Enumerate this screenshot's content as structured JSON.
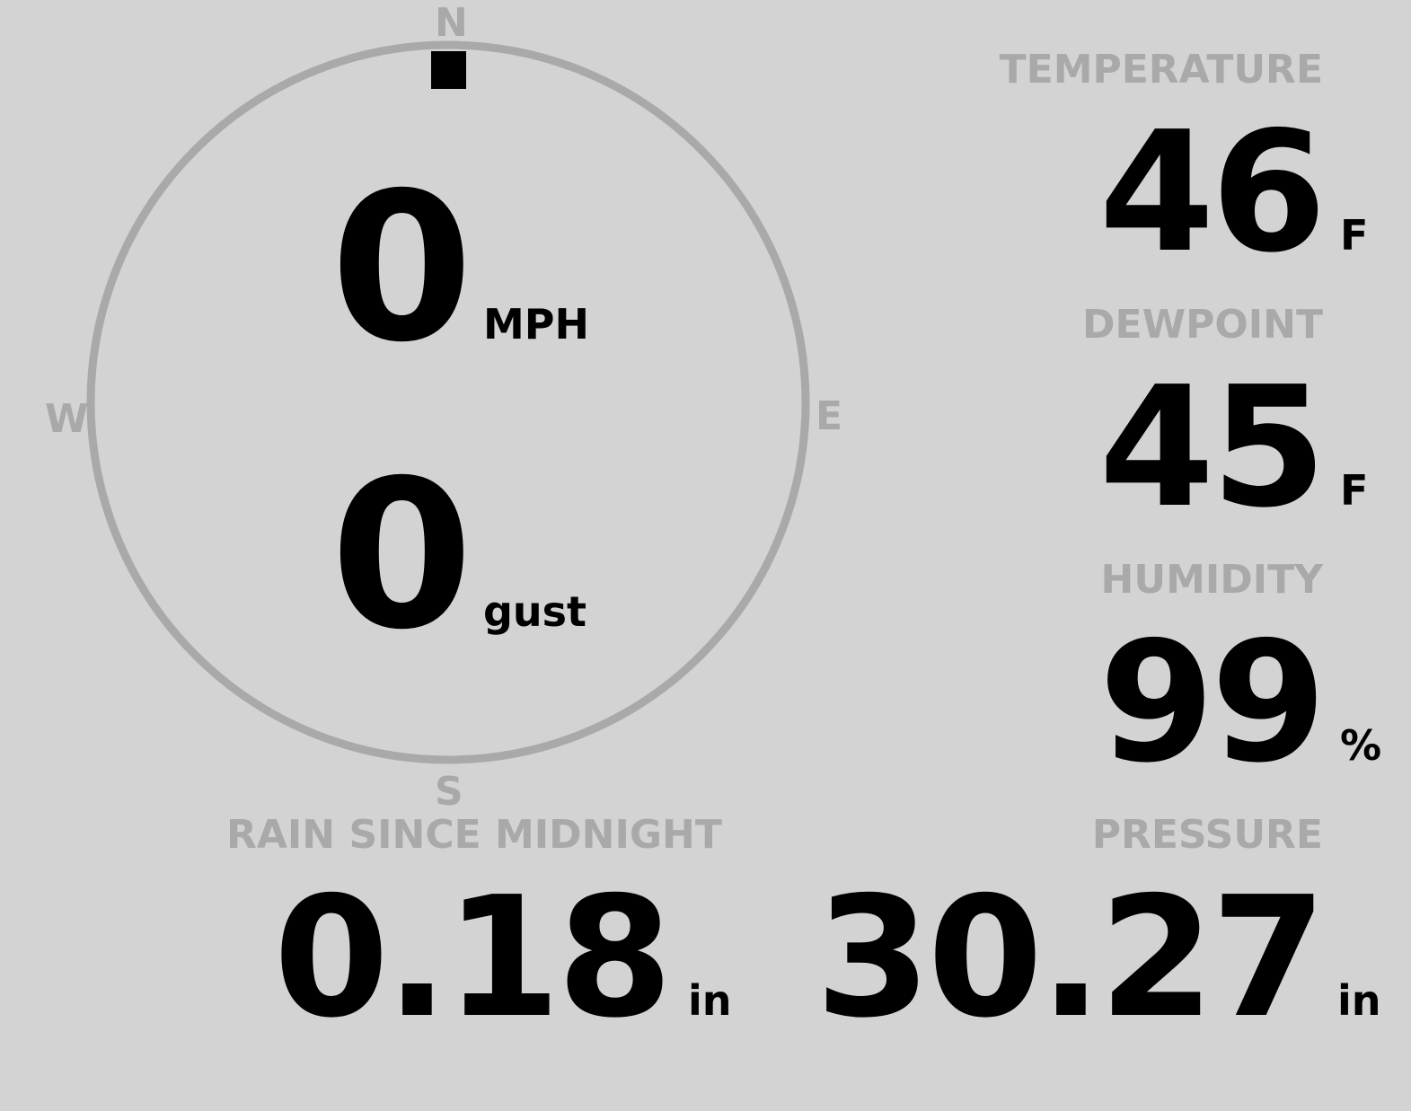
{
  "wind": {
    "directions": {
      "n": "N",
      "e": "E",
      "s": "S",
      "w": "W"
    },
    "speed": "0",
    "speed_unit": "MPH",
    "gust": "0",
    "gust_unit": "gust",
    "direction_degrees": 0
  },
  "temperature": {
    "label": "TEMPERATURE",
    "value": "46",
    "unit": "F"
  },
  "dewpoint": {
    "label": "DEWPOINT",
    "value": "45",
    "unit": "F"
  },
  "humidity": {
    "label": "HUMIDITY",
    "value": "99",
    "unit": "%"
  },
  "rain": {
    "label": "RAIN SINCE MIDNIGHT",
    "value": "0.18",
    "unit": "in"
  },
  "pressure": {
    "label": "PRESSURE",
    "value": "30.27",
    "unit": "in"
  },
  "colors": {
    "background": "#d3d3d3",
    "label": "#a9a9a9",
    "value": "#000000"
  }
}
